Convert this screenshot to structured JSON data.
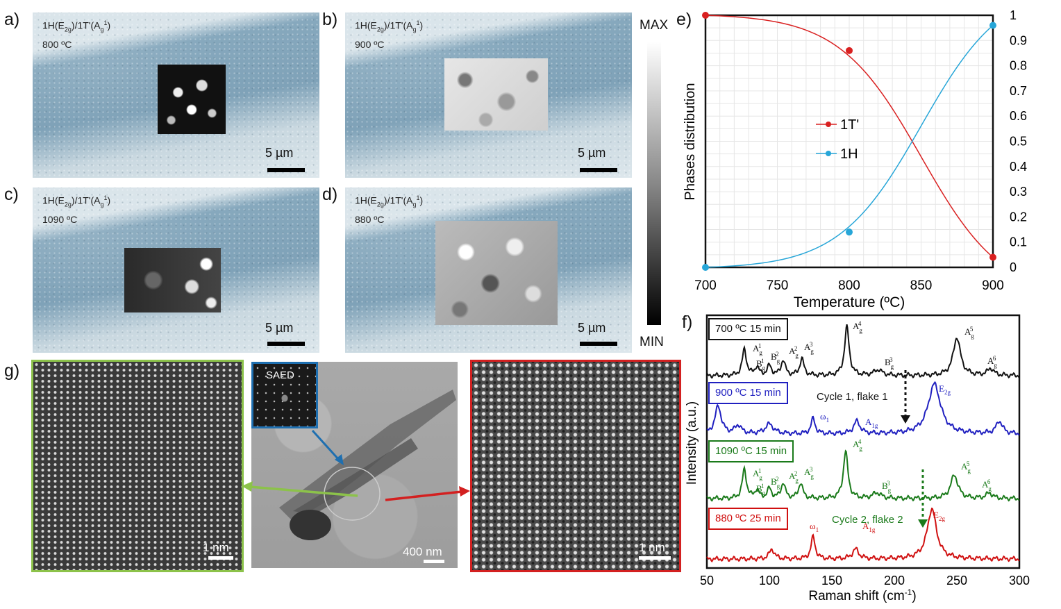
{
  "panels": {
    "a": {
      "label": "a)",
      "line1": "1H(E",
      "s1": "2g",
      "m1": ")/1T'(A",
      "s2": "g",
      "p2": "1",
      "e1": ")",
      "temp": "800 ºC",
      "scale": "5 µm"
    },
    "b": {
      "label": "b)",
      "line1": "1H(E",
      "s1": "2g",
      "m1": ")/1T'(A",
      "s2": "g",
      "p2": "1",
      "e1": ")",
      "temp": "900 ºC",
      "scale": "5 µm"
    },
    "c": {
      "label": "c)",
      "line1": "1H(E",
      "s1": "2g",
      "m1": ")/1T'(A",
      "s2": "g",
      "p2": "1",
      "e1": ")",
      "temp": "1090 ºC",
      "scale": "5 µm"
    },
    "d": {
      "label": "d)",
      "line1": "1H(E",
      "s1": "2g",
      "m1": ")/1T'(A",
      "s2": "g",
      "p2": "1",
      "e1": ")",
      "temp": "880 ºC",
      "scale": "5 µm"
    }
  },
  "colorbar": {
    "max": "MAX",
    "min": "MIN"
  },
  "panel_e": {
    "label": "e)"
  },
  "panel_f": {
    "label": "f)"
  },
  "panel_g": {
    "label": "g)",
    "saed": "SAED",
    "scale_left": "1 nm",
    "scale_mid": "400 nm",
    "scale_right": "1 nm"
  },
  "colors": {
    "t1": "#d92020",
    "h1": "#27a6d8",
    "black": "#111111",
    "blue": "#2020c0",
    "green": "#1a7a1a",
    "red": "#d01010",
    "green_frame": "#8cc24a",
    "red_frame": "#d32020",
    "saed_frame": "#1e6fb0"
  },
  "chart_data": [
    {
      "type": "line",
      "xlabel": "Temperature (ºC)",
      "ylabel": "Phases distribution",
      "xlim": [
        700,
        900
      ],
      "ylim": [
        0,
        1
      ],
      "x_ticks": [
        "700",
        "750",
        "800",
        "850",
        "900"
      ],
      "y2_ticks": [
        "0",
        "0.1",
        "0.2",
        "0.3",
        "0.4",
        "0.5",
        "0.6",
        "0.7",
        "0.8",
        "0.9",
        "1"
      ],
      "grid": true,
      "legend": "center-left",
      "series": [
        {
          "name": "1T'",
          "x": [
            700,
            800,
            900
          ],
          "y": [
            1.0,
            0.86,
            0.04
          ]
        },
        {
          "name": "1H",
          "x": [
            700,
            800,
            900
          ],
          "y": [
            0.0,
            0.14,
            0.96
          ]
        }
      ]
    },
    {
      "type": "line",
      "xlabel": "Raman shift (cm",
      "xlabel_sup": "-1",
      "xlabel_end": ")",
      "ylabel": "Intensity (a.u.)",
      "xlim": [
        50,
        300
      ],
      "x_ticks": [
        "50",
        "100",
        "150",
        "200",
        "250",
        "300"
      ],
      "series": [
        {
          "name": "700 ºC 15 min",
          "peaks": [
            "A1g",
            "B1g",
            "B2g",
            "A2g",
            "A3g",
            "A4g",
            "B3g",
            "A5g",
            "A6g"
          ]
        },
        {
          "name": "900 ºC 15 min",
          "peaks": [
            "ω1",
            "A1g",
            "E2g"
          ]
        },
        {
          "name": "1090 ºC 15 min",
          "peaks": [
            "A1g",
            "B1g",
            "B2g",
            "A2g",
            "A3g",
            "A4g",
            "B3g",
            "A5g",
            "A6g"
          ]
        },
        {
          "name": "880 ºC 25 min",
          "peaks": [
            "ω1",
            "A1g",
            "E2g"
          ]
        }
      ],
      "annotations": [
        "Cycle 1, flake 1",
        "Cycle 2, flake 2"
      ]
    }
  ]
}
